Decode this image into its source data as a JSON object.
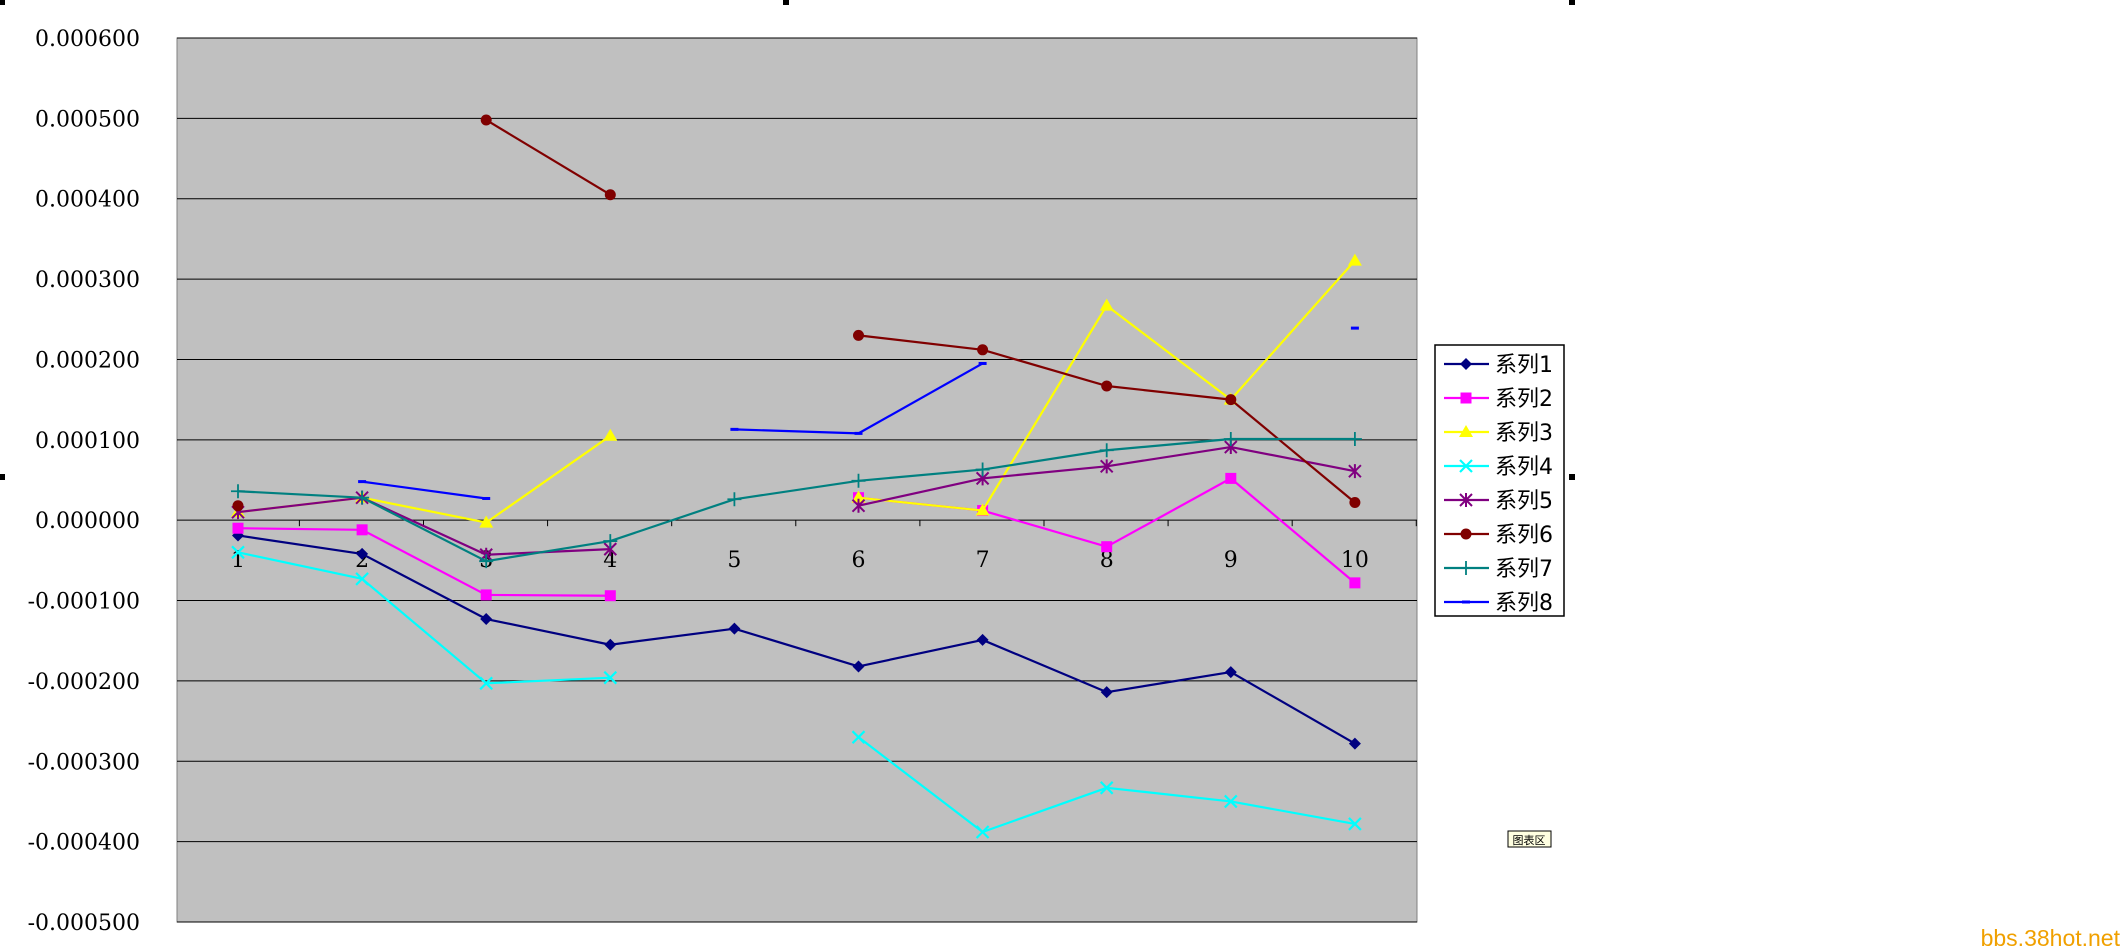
{
  "chart_data": {
    "type": "line",
    "title": "",
    "xlabel": "",
    "ylabel": "",
    "categories": [
      "1",
      "2",
      "3",
      "4",
      "5",
      "6",
      "7",
      "8",
      "9",
      "10"
    ],
    "ylim": [
      -0.0005,
      0.0006
    ],
    "yticks": [
      0.0006,
      0.0005,
      0.0004,
      0.0003,
      0.0002,
      0.0001,
      0.0,
      -0.0001,
      -0.0002,
      -0.0003,
      -0.0004,
      -0.0005
    ],
    "ytick_labels": [
      "0.000600",
      "0.000500",
      "0.000400",
      "0.000300",
      "0.000200",
      "0.000100",
      "0.000000",
      "-0.000100",
      "-0.000200",
      "-0.000300",
      "-0.000400",
      "-0.000500"
    ],
    "grid": true,
    "plot_background": "#c0c0c0",
    "legend_position": "right",
    "series": [
      {
        "name": "系列1",
        "color": "#000080",
        "marker": "diamond",
        "values": [
          -1.9e-05,
          -4.2e-05,
          -0.000123,
          -0.000155,
          -0.000135,
          -0.000182,
          -0.000149,
          -0.000214,
          -0.000189,
          -0.000278
        ]
      },
      {
        "name": "系列2",
        "color": "#ff00ff",
        "marker": "square",
        "values": [
          -1e-05,
          -1.2e-05,
          -9.3e-05,
          -9.4e-05,
          null,
          2.8e-05,
          1.2e-05,
          -3.3e-05,
          5.2e-05,
          -7.8e-05
        ]
      },
      {
        "name": "系列3",
        "color": "#ffff00",
        "marker": "triangle",
        "values": [
          1e-05,
          2.8e-05,
          -3e-06,
          0.000105,
          null,
          2.8e-05,
          1.2e-05,
          0.000267,
          0.00015,
          0.000323
        ]
      },
      {
        "name": "系列4",
        "color": "#00ffff",
        "marker": "x",
        "values": [
          -4e-05,
          -7.3e-05,
          -0.000203,
          -0.000196,
          null,
          -0.00027,
          -0.000388,
          -0.000333,
          -0.00035,
          -0.000378
        ]
      },
      {
        "name": "系列5",
        "color": "#800080",
        "marker": "asterisk",
        "values": [
          1e-05,
          2.8e-05,
          -4.3e-05,
          -3.6e-05,
          null,
          1.8e-05,
          5.2e-05,
          6.7e-05,
          9.1e-05,
          6.1e-05
        ]
      },
      {
        "name": "系列6",
        "color": "#800000",
        "marker": "circle",
        "values": [
          1.8e-05,
          null,
          0.000498,
          0.000405,
          null,
          0.00023,
          0.000212,
          0.000167,
          0.00015,
          2.2e-05
        ]
      },
      {
        "name": "系列7",
        "color": "#008080",
        "marker": "plus",
        "values": [
          3.6e-05,
          2.8e-05,
          -5.1e-05,
          -2.6e-05,
          2.6e-05,
          4.9e-05,
          6.3e-05,
          8.7e-05,
          0.000101,
          0.000101
        ]
      },
      {
        "name": "系列8",
        "color": "#0000ff",
        "marker": "dash",
        "values": [
          null,
          4.8e-05,
          2.7e-05,
          null,
          0.000113,
          0.000108,
          0.000195,
          null,
          null,
          0.000239
        ]
      }
    ]
  },
  "chart_tag": "图表区",
  "watermark": "bbs.38hot.net"
}
